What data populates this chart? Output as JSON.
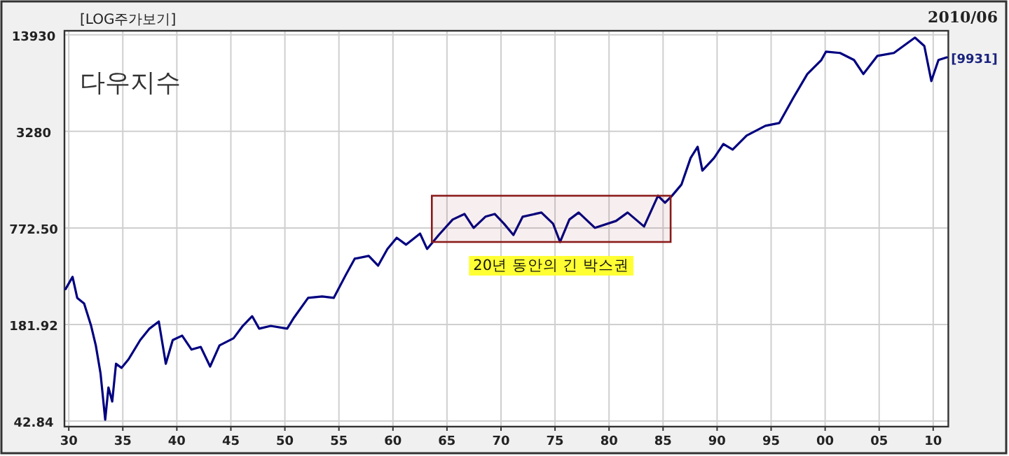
{
  "chart_data": {
    "type": "line",
    "title": "다우지수",
    "subtitle": "[LOG주가보기]",
    "annotations": [
      "2010/06",
      {
        "text": "[9931]",
        "x": 2011.26,
        "y": 9931
      }
    ],
    "x": [
      1929.7,
      1930.35,
      1930.78,
      1931.42,
      1932.07,
      1932.5,
      1932.94,
      1933.24,
      1933.37,
      1933.67,
      1934.02,
      1934.37,
      1934.88,
      1935.53,
      1936.61,
      1937.47,
      1938.33,
      1938.98,
      1939.62,
      1940.49,
      1941.36,
      1942.21,
      1943.08,
      1943.95,
      1945.25,
      1946.1,
      1946.97,
      1947.62,
      1948.69,
      1950.21,
      1950.85,
      1952.15,
      1953.45,
      1954.52,
      1955.61,
      1956.46,
      1957.76,
      1958.63,
      1959.49,
      1960.35,
      1961.22,
      1962.51,
      1963.16,
      1964.24,
      1965.53,
      1966.62,
      1967.47,
      1968.56,
      1969.42,
      1970.28,
      1971.15,
      1972.01,
      1973.74,
      1974.82,
      1975.47,
      1976.33,
      1977.19,
      1978.7,
      1980.65,
      1981.72,
      1983.24,
      1984.53,
      1985.18,
      1985.83,
      1986.7,
      1987.55,
      1988.2,
      1988.64,
      1989.72,
      1990.58,
      1991.44,
      1992.73,
      1994.47,
      1995.76,
      1997.06,
      1998.35,
      1999.65,
      2000.08,
      2001.38,
      2002.67,
      2003.54,
      2004.84,
      2006.36,
      2008.31,
      2009.18,
      2009.83,
      2010.49,
      2011.26
    ],
    "series": [
      {
        "color": "#000080",
        "values": [
          309,
          371,
          271,
          249,
          178,
          133,
          87.3,
          53.9,
          43.7,
          70.8,
          57.4,
          101,
          95,
          108,
          144,
          171,
          190,
          101,
          144,
          154,
          125,
          130,
          97,
          133,
          148,
          178,
          206,
          171,
          178,
          171,
          202,
          271,
          277,
          271,
          379,
          487,
          508,
          439,
          564,
          667,
          601,
          710,
          564,
          695,
          876,
          952,
          773,
          914,
          952,
          823,
          695,
          914,
          973,
          823,
          626,
          876,
          973,
          773,
          858,
          973,
          789,
          1251,
          1126,
          1251,
          1479,
          2203,
          2603,
          1824,
          2203,
          2715,
          2499,
          3081,
          3566,
          3720,
          5425,
          7745,
          9556,
          10832,
          10614,
          9556,
          7745,
          10169,
          10614,
          13360,
          11781,
          6975,
          9556,
          9931
        ]
      }
    ],
    "log": "y",
    "grid": true,
    "marker": "none",
    "line_style": "solid",
    "xlim": [
      1929.6,
      2011.4
    ],
    "ylim": [
      39.4,
      14800
    ],
    "xticks": [
      {
        "value": 1930,
        "label": "30"
      },
      {
        "value": 1935,
        "label": "35"
      },
      {
        "value": 1940,
        "label": "40"
      },
      {
        "value": 1945,
        "label": "45"
      },
      {
        "value": 1950,
        "label": "50"
      },
      {
        "value": 1955,
        "label": "55"
      },
      {
        "value": 1960,
        "label": "60"
      },
      {
        "value": 1965,
        "label": "65"
      },
      {
        "value": 1970,
        "label": "70"
      },
      {
        "value": 1975,
        "label": "75"
      },
      {
        "value": 1980,
        "label": "80"
      },
      {
        "value": 1985,
        "label": "85"
      },
      {
        "value": 1990,
        "label": "90"
      },
      {
        "value": 1995,
        "label": "95"
      },
      {
        "value": 2000,
        "label": "00"
      },
      {
        "value": 2005,
        "label": "05"
      },
      {
        "value": 2010,
        "label": "10"
      }
    ],
    "yticks": [
      42.84,
      181.92,
      {
        "value": 772.5,
        "label": "772.50"
      },
      3280,
      13930
    ],
    "bands": [
      {
        "axis": "x",
        "from": 1963.6,
        "to": 1985.7,
        "label": "20년 동안의 긴 박스권",
        "color": "#8b1a1a"
      }
    ]
  }
}
